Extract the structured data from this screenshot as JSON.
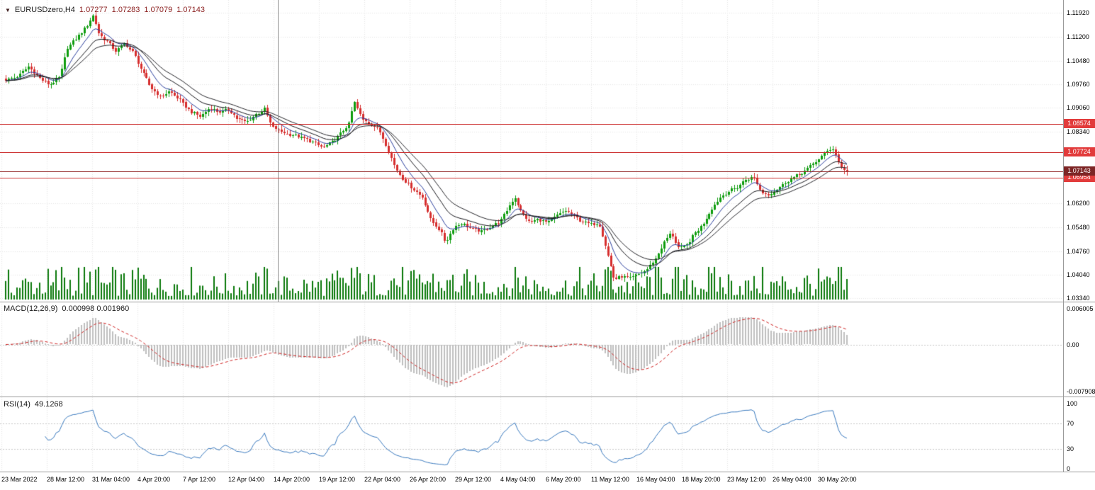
{
  "header": {
    "dropdown_icon": "▼",
    "symbol": "EURUSDzero,H4",
    "open": "1.07277",
    "high": "1.07283",
    "low": "1.07079",
    "close": "1.07143"
  },
  "colors": {
    "bull": "#0f9d0f",
    "bear": "#d62e2e",
    "volume": "#0c7a0c",
    "grid": "#e6e6e6",
    "level_dash": "#c9c9c9"
  },
  "time_axis": {
    "labels": [
      "23 Mar 2022",
      "28 Mar 12:00",
      "31 Mar 04:00",
      "4 Apr 20:00",
      "7 Apr 12:00",
      "12 Apr 04:00",
      "14 Apr 20:00",
      "19 Apr 12:00",
      "22 Apr 04:00",
      "26 Apr 20:00",
      "29 Apr 12:00",
      "4 May 04:00",
      "6 May 20:00",
      "11 May 12:00",
      "16 May 04:00",
      "18 May 20:00",
      "23 May 12:00",
      "26 May 04:00",
      "30 May 20:00"
    ]
  },
  "chart_data": [
    {
      "id": "price",
      "type": "candlestick",
      "symbol": "EURUSDzero",
      "timeframe": "H4",
      "bars": 300,
      "current_bar": {
        "open": 1.07277,
        "high": 1.07283,
        "low": 1.07079,
        "close": 1.07143
      },
      "range": {
        "top": 1.123,
        "bottom": 1.0324
      },
      "axis_ticks": [
        {
          "label": "1.11920",
          "v": 1.1192
        },
        {
          "label": "1.11200",
          "v": 1.112
        },
        {
          "label": "1.10480",
          "v": 1.1048
        },
        {
          "label": "1.09760",
          "v": 1.0976
        },
        {
          "label": "1.09060",
          "v": 1.0906
        },
        {
          "label": "1.08340",
          "v": 1.0834
        },
        {
          "label": "1.06200",
          "v": 1.062
        },
        {
          "label": "1.05480",
          "v": 1.0548
        },
        {
          "label": "1.04760",
          "v": 1.0476
        },
        {
          "label": "1.04040",
          "v": 1.0404
        },
        {
          "label": "1.03340",
          "v": 1.0334
        }
      ],
      "hlines": [
        {
          "price": 1.08574,
          "label": "1.08574",
          "line_color": "#cc2f2f",
          "tag_color": "#e23b3b"
        },
        {
          "price": 1.07724,
          "label": "1.07724",
          "line_color": "#cc2f2f",
          "tag_color": "#e23b3b"
        },
        {
          "price": 1.06954,
          "label": "1.06954",
          "line_color": "#cc2f2f",
          "tag_color": "#e23b3b"
        },
        {
          "price": 1.07143,
          "label": "1.07143",
          "line_color": "#993333",
          "tag_color": "#7d2525",
          "current_bid": true
        }
      ],
      "overlays": [
        {
          "name": "ma-fast",
          "period": 8,
          "color": "#2b3f9e"
        },
        {
          "name": "ma-mid",
          "period": 16,
          "color": "#15151a"
        },
        {
          "name": "ma-slow",
          "period": 24,
          "color": "#26262b"
        }
      ],
      "volume": {
        "color": "#0c7a0c",
        "max_height": 46
      },
      "keyframes": [
        [
          0.0,
          1.099
        ],
        [
          0.014,
          1.1
        ],
        [
          0.027,
          1.103
        ],
        [
          0.04,
          1.0995
        ],
        [
          0.052,
          1.0975
        ],
        [
          0.065,
          1.1
        ],
        [
          0.073,
          1.1085
        ],
        [
          0.086,
          1.112
        ],
        [
          0.096,
          1.115
        ],
        [
          0.104,
          1.1185
        ],
        [
          0.111,
          1.1125
        ],
        [
          0.121,
          1.1105
        ],
        [
          0.131,
          1.1075
        ],
        [
          0.141,
          1.11
        ],
        [
          0.152,
          1.107
        ],
        [
          0.162,
          1.1015
        ],
        [
          0.173,
          1.0965
        ],
        [
          0.184,
          1.094
        ],
        [
          0.195,
          1.0955
        ],
        [
          0.207,
          1.093
        ],
        [
          0.219,
          1.0895
        ],
        [
          0.231,
          1.088
        ],
        [
          0.243,
          1.0907
        ],
        [
          0.254,
          1.0893
        ],
        [
          0.265,
          1.09
        ],
        [
          0.275,
          1.0873
        ],
        [
          0.286,
          1.0863
        ],
        [
          0.297,
          1.0885
        ],
        [
          0.308,
          1.0903
        ],
        [
          0.316,
          1.085
        ],
        [
          0.324,
          1.0838
        ],
        [
          0.334,
          1.0828
        ],
        [
          0.345,
          1.0822
        ],
        [
          0.357,
          1.0812
        ],
        [
          0.369,
          1.0797
        ],
        [
          0.377,
          1.0786
        ],
        [
          0.388,
          1.0803
        ],
        [
          0.398,
          1.0828
        ],
        [
          0.408,
          1.0858
        ],
        [
          0.414,
          1.0925
        ],
        [
          0.424,
          1.0872
        ],
        [
          0.434,
          1.0858
        ],
        [
          0.444,
          1.0838
        ],
        [
          0.454,
          1.0782
        ],
        [
          0.463,
          1.0725
        ],
        [
          0.473,
          1.069
        ],
        [
          0.484,
          1.0662
        ],
        [
          0.495,
          1.0638
        ],
        [
          0.505,
          1.0572
        ],
        [
          0.516,
          1.054
        ],
        [
          0.523,
          1.0502
        ],
        [
          0.533,
          1.0548
        ],
        [
          0.543,
          1.056
        ],
        [
          0.554,
          1.0542
        ],
        [
          0.565,
          1.0535
        ],
        [
          0.576,
          1.055
        ],
        [
          0.587,
          1.0562
        ],
        [
          0.598,
          1.061
        ],
        [
          0.605,
          1.0638
        ],
        [
          0.613,
          1.059
        ],
        [
          0.623,
          1.0562
        ],
        [
          0.633,
          1.0572
        ],
        [
          0.644,
          1.056
        ],
        [
          0.655,
          1.0582
        ],
        [
          0.665,
          1.0597
        ],
        [
          0.674,
          1.0585
        ],
        [
          0.684,
          1.0565
        ],
        [
          0.695,
          1.0556
        ],
        [
          0.705,
          1.056
        ],
        [
          0.714,
          1.0478
        ],
        [
          0.723,
          1.0392
        ],
        [
          0.732,
          1.04
        ],
        [
          0.742,
          1.0394
        ],
        [
          0.752,
          1.0406
        ],
        [
          0.762,
          1.042
        ],
        [
          0.773,
          1.0455
        ],
        [
          0.783,
          1.0505
        ],
        [
          0.791,
          1.0532
        ],
        [
          0.8,
          1.0482
        ],
        [
          0.809,
          1.0492
        ],
        [
          0.819,
          1.053
        ],
        [
          0.829,
          1.0558
        ],
        [
          0.839,
          1.0602
        ],
        [
          0.849,
          1.0636
        ],
        [
          0.859,
          1.0655
        ],
        [
          0.869,
          1.0666
        ],
        [
          0.88,
          1.0692
        ],
        [
          0.889,
          1.0698
        ],
        [
          0.898,
          1.0652
        ],
        [
          0.907,
          1.0646
        ],
        [
          0.917,
          1.0663
        ],
        [
          0.928,
          1.0685
        ],
        [
          0.938,
          1.07
        ],
        [
          0.948,
          1.0712
        ],
        [
          0.958,
          1.0733
        ],
        [
          0.968,
          1.0757
        ],
        [
          0.978,
          1.078
        ],
        [
          0.984,
          1.0785
        ],
        [
          0.99,
          1.0742
        ],
        [
          0.996,
          1.0718
        ],
        [
          1.0,
          1.07143
        ]
      ]
    },
    {
      "id": "macd",
      "type": "macd-histogram",
      "label": "MACD(12,26,9)",
      "values_text": "0.000998 0.001960",
      "params": {
        "fast": 12,
        "slow": 26,
        "signal": 9
      },
      "current": {
        "macd": 0.000998,
        "signal": 0.00196
      },
      "range": {
        "top": 0.00696,
        "bottom": -0.00874
      },
      "axis_ticks": [
        {
          "label": "0.006005",
          "v": 0.006005
        },
        {
          "label": "0.00",
          "v": 0
        },
        {
          "label": "-0.007908",
          "v": -0.007908
        }
      ],
      "colors": {
        "histogram": "#bfbfbf",
        "signal": "#cf1f1f"
      }
    },
    {
      "id": "rsi",
      "type": "line",
      "label": "RSI(14)",
      "value_text": "49.1268",
      "params": {
        "period": 14
      },
      "current": 49.1268,
      "range": {
        "top": 107.6,
        "bottom": -4.3
      },
      "axis_ticks": [
        {
          "label": "100",
          "v": 100
        },
        {
          "label": "70",
          "v": 70
        },
        {
          "label": "30",
          "v": 30
        },
        {
          "label": "0",
          "v": 0
        }
      ],
      "levels": [
        70,
        30
      ],
      "colors": {
        "line": "#3a7abf"
      }
    }
  ]
}
